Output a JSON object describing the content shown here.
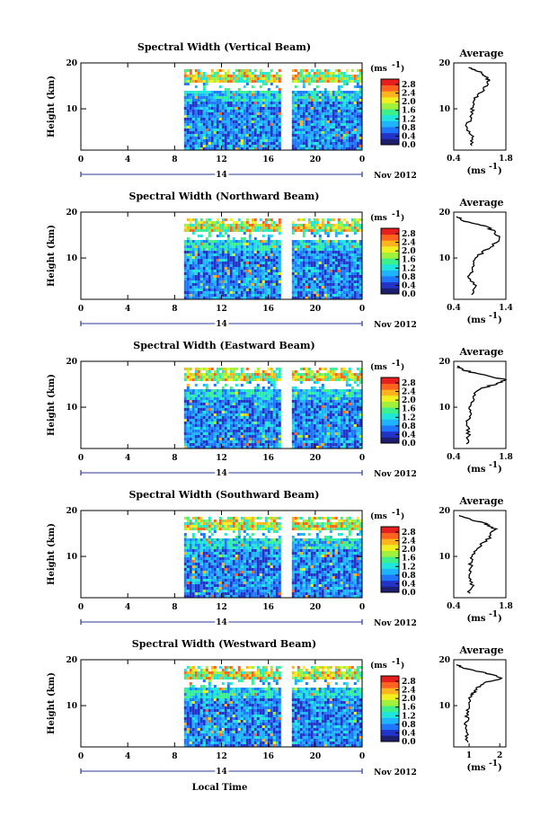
{
  "chart_data": [
    {
      "type": "heatmap",
      "title": "Spectral Width (Vertical Beam)",
      "ylabel": "Height (km)",
      "x_ticks": [
        "0",
        "4",
        "8",
        "12",
        "16",
        "20",
        "0"
      ],
      "x_range_hours": [
        0,
        24
      ],
      "y_ticks": [
        "20",
        "10"
      ],
      "ylim_km": [
        1,
        20
      ],
      "day_label": "14",
      "month_label": "Nov 2012",
      "colorbar_unit": "(ms",
      "colorbar_unit_exp": "-1",
      "colorbar_ticks": [
        "2.8",
        "2.4",
        "2.0",
        "1.6",
        "1.2",
        "0.8",
        "0.4",
        "0.0"
      ],
      "data_window_hours": [
        8.8,
        23.9
      ],
      "data_gap_hours": [
        17.3,
        18.0
      ],
      "profile": {
        "title": "Average",
        "xlabel": "(ms",
        "xlabel_exp": "-1",
        "x_ticks": [
          "0.4",
          "1.8"
        ],
        "xlim": [
          0.4,
          1.8
        ],
        "heights_km": [
          2,
          4,
          6,
          8,
          10,
          12,
          14,
          16,
          17,
          18,
          19
        ],
        "values": [
          0.85,
          0.9,
          0.75,
          0.85,
          0.9,
          0.95,
          1.2,
          1.35,
          1.25,
          1.1,
          0.8
        ]
      }
    },
    {
      "type": "heatmap",
      "title": "Spectral Width (Northward Beam)",
      "ylabel": "Height (km)",
      "x_ticks": [
        "0",
        "4",
        "8",
        "12",
        "16",
        "20",
        "0"
      ],
      "x_range_hours": [
        0,
        24
      ],
      "y_ticks": [
        "20",
        "10"
      ],
      "ylim_km": [
        1,
        20
      ],
      "day_label": "14",
      "month_label": "Nov 2012",
      "colorbar_unit": "(ms",
      "colorbar_unit_exp": "-1",
      "colorbar_ticks": [
        "2.8",
        "2.4",
        "2.0",
        "1.6",
        "1.2",
        "0.8",
        "0.4",
        "0.0"
      ],
      "data_window_hours": [
        8.8,
        23.9
      ],
      "data_gap_hours": [
        17.3,
        18.0
      ],
      "profile": {
        "title": "Average",
        "xlabel": "(ms",
        "xlabel_exp": "-1",
        "x_ticks": [
          "0.4",
          "1.4"
        ],
        "xlim": [
          0.4,
          1.4
        ],
        "heights_km": [
          2,
          4,
          6,
          8,
          10,
          12,
          14,
          16,
          17,
          18,
          19
        ],
        "values": [
          0.75,
          0.8,
          0.7,
          0.75,
          0.8,
          1.05,
          1.3,
          1.15,
          1.0,
          0.6,
          0.45
        ]
      }
    },
    {
      "type": "heatmap",
      "title": "Spectral Width (Eastward Beam)",
      "ylabel": "Height (km)",
      "x_ticks": [
        "0",
        "4",
        "8",
        "12",
        "16",
        "20",
        "0"
      ],
      "x_range_hours": [
        0,
        24
      ],
      "y_ticks": [
        "20",
        "10"
      ],
      "ylim_km": [
        1,
        20
      ],
      "day_label": "14",
      "month_label": "Nov 2012",
      "colorbar_unit": "(ms",
      "colorbar_unit_exp": "-1",
      "colorbar_ticks": [
        "2.8",
        "2.4",
        "2.0",
        "1.6",
        "1.2",
        "0.8",
        "0.4",
        "0.0"
      ],
      "data_window_hours": [
        8.8,
        23.9
      ],
      "data_gap_hours": [
        17.3,
        18.0
      ],
      "profile": {
        "title": "Average",
        "xlabel": "(ms",
        "xlabel_exp": "-1",
        "x_ticks": [
          "0.4",
          "1.8"
        ],
        "xlim": [
          0.4,
          1.8
        ],
        "heights_km": [
          2,
          4,
          6,
          8,
          10,
          12,
          14,
          15,
          16,
          17,
          18,
          19
        ],
        "values": [
          0.75,
          0.8,
          0.75,
          0.8,
          0.85,
          0.9,
          1.1,
          1.5,
          1.8,
          1.2,
          0.7,
          0.5
        ]
      }
    },
    {
      "type": "heatmap",
      "title": "Spectral Width (Southward Beam)",
      "ylabel": "Height (km)",
      "x_ticks": [
        "0",
        "4",
        "8",
        "12",
        "16",
        "20",
        "0"
      ],
      "x_range_hours": [
        0,
        24
      ],
      "y_ticks": [
        "20",
        "10"
      ],
      "ylim_km": [
        1,
        20
      ],
      "day_label": "14",
      "month_label": "Nov 2012",
      "colorbar_unit": "(ms",
      "colorbar_unit_exp": "-1",
      "colorbar_ticks": [
        "2.8",
        "2.4",
        "2.0",
        "1.6",
        "1.2",
        "0.8",
        "0.4",
        "0.0"
      ],
      "data_window_hours": [
        8.8,
        23.9
      ],
      "data_gap_hours": [
        17.3,
        18.0
      ],
      "profile": {
        "title": "Average",
        "xlabel": "(ms",
        "xlabel_exp": "-1",
        "x_ticks": [
          "0.4",
          "1.8"
        ],
        "xlim": [
          0.4,
          1.8
        ],
        "heights_km": [
          2,
          4,
          6,
          8,
          10,
          12,
          14,
          16,
          17,
          18,
          19
        ],
        "values": [
          0.8,
          0.9,
          0.8,
          0.85,
          0.9,
          1.05,
          1.35,
          1.5,
          1.3,
          0.9,
          0.55
        ]
      }
    },
    {
      "type": "heatmap",
      "title": "Spectral Width (Westward Beam)",
      "ylabel": "Height (km)",
      "x_ticks": [
        "0",
        "4",
        "8",
        "12",
        "16",
        "20",
        "0"
      ],
      "x_range_hours": [
        0,
        24
      ],
      "y_ticks": [
        "20",
        "10"
      ],
      "ylim_km": [
        1,
        20
      ],
      "day_label": "14",
      "month_label": "Nov 2012",
      "xlabel": "Local Time",
      "colorbar_unit": "(ms",
      "colorbar_unit_exp": "-1",
      "colorbar_ticks": [
        "2.8",
        "2.4",
        "2.0",
        "1.6",
        "1.2",
        "0.8",
        "0.4",
        "0.0"
      ],
      "data_window_hours": [
        8.8,
        23.9
      ],
      "data_gap_hours": [
        17.3,
        18.0
      ],
      "profile": {
        "title": "Average",
        "xlabel": "(ms",
        "xlabel_exp": "-1",
        "x_ticks": [
          "1",
          "2"
        ],
        "xlim": [
          0.5,
          2.2
        ],
        "heights_km": [
          2,
          4,
          6,
          8,
          10,
          12,
          13,
          14,
          15,
          16,
          17,
          18,
          19
        ],
        "values": [
          0.9,
          0.95,
          0.9,
          0.95,
          1.0,
          1.05,
          1.2,
          1.3,
          1.5,
          2.1,
          1.6,
          0.9,
          0.6
        ]
      }
    }
  ],
  "colormap": [
    "#1e1e6e",
    "#2233c8",
    "#1e78ff",
    "#1eb4ff",
    "#1ee6dc",
    "#3cf08c",
    "#a0f03c",
    "#f0f01e",
    "#ffb41e",
    "#ff641e",
    "#e61e1e"
  ]
}
